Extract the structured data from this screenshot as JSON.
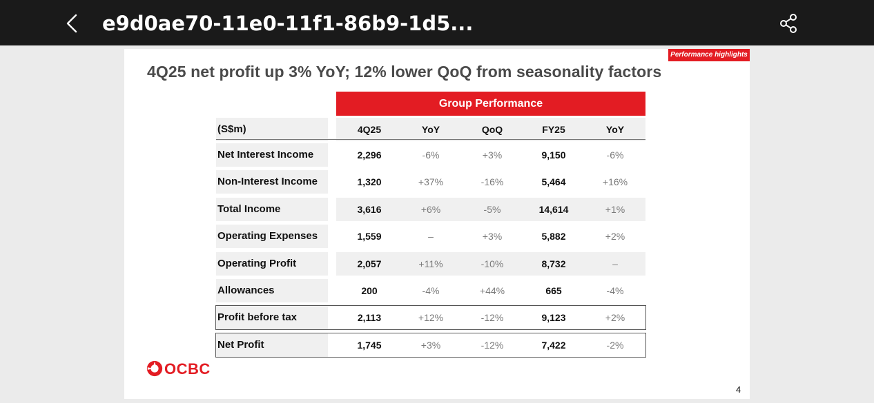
{
  "header": {
    "title": "e9d0ae70-11e0-11f1-86b9-1d5...",
    "back_icon": "chevron-left-icon",
    "share_icon": "share-icon"
  },
  "slide": {
    "tag": "Performance highlights",
    "headline": "4Q25 net profit up 3% YoY; 12% lower QoQ from seasonality factors",
    "group_header": "Group Performance",
    "columns": [
      "(S$m)",
      "4Q25",
      "YoY",
      "QoQ",
      "FY25",
      "YoY"
    ],
    "rows": [
      {
        "label": "Net Interest Income",
        "q": "2,296",
        "q_yoy": "-6%",
        "qoq": "+3%",
        "fy": "9,150",
        "fy_yoy": "-6%"
      },
      {
        "label": "Non-Interest Income",
        "q": "1,320",
        "q_yoy": "+37%",
        "qoq": "-16%",
        "fy": "5,464",
        "fy_yoy": "+16%"
      },
      {
        "label": "Total Income",
        "q": "3,616",
        "q_yoy": "+6%",
        "qoq": "-5%",
        "fy": "14,614",
        "fy_yoy": "+1%"
      },
      {
        "label": "Operating Expenses",
        "q": "1,559",
        "q_yoy": "–",
        "qoq": "+3%",
        "fy": "5,882",
        "fy_yoy": "+2%"
      },
      {
        "label": "Operating Profit",
        "q": "2,057",
        "q_yoy": "+11%",
        "qoq": "-10%",
        "fy": "8,732",
        "fy_yoy": "–"
      },
      {
        "label": "Allowances",
        "q": "200",
        "q_yoy": "-4%",
        "qoq": "+44%",
        "fy": "665",
        "fy_yoy": "-4%"
      },
      {
        "label": "Profit before tax",
        "q": "2,113",
        "q_yoy": "+12%",
        "qoq": "-12%",
        "fy": "9,123",
        "fy_yoy": "+2%"
      },
      {
        "label": "Net Profit",
        "q": "1,745",
        "q_yoy": "+3%",
        "qoq": "-12%",
        "fy": "7,422",
        "fy_yoy": "-2%"
      }
    ],
    "logo_text": "OCBC",
    "page_number": "4",
    "brand_color": "#e31c23"
  }
}
